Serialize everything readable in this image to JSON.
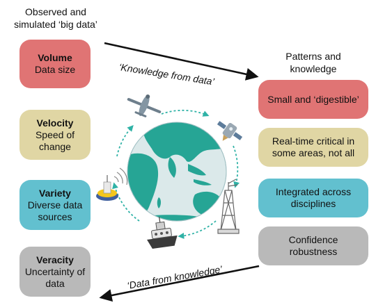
{
  "headings": {
    "left": "Observed and simulated ‘big data’",
    "right": "Patterns and knowledge"
  },
  "left_boxes": [
    {
      "title": "Volume",
      "text": "Data size",
      "color": "#e07474"
    },
    {
      "title": "Velocity",
      "text": "Speed of change",
      "color": "#e0d6a4"
    },
    {
      "title": "Variety",
      "text": "Diverse data sources",
      "color": "#62c0cf"
    },
    {
      "title": "Veracity",
      "text": "Uncertainty of data",
      "color": "#b9b9b9"
    }
  ],
  "right_boxes": [
    {
      "text": "Small and ‘digestible’",
      "color": "#e07474"
    },
    {
      "text": "Real-time critical in some areas, not all",
      "color": "#e0d6a4"
    },
    {
      "text": "Integrated across disciplines",
      "color": "#62c0cf"
    },
    {
      "text": "Confidence robustness",
      "color": "#b9b9b9"
    }
  ],
  "arrows": {
    "top_label": "‘Knowledge from data’",
    "bottom_label": "‘Data from knowledge’"
  },
  "colors": {
    "globe_ocean": "#dbe9ea",
    "globe_land": "#26a595",
    "cycle_arrow": "#2fb2a6"
  }
}
